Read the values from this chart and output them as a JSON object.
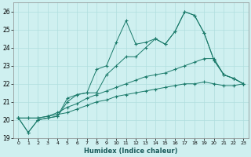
{
  "xlabel": "Humidex (Indice chaleur)",
  "background_color": "#cff0f0",
  "grid_color": "#b0dede",
  "line_color": "#1a7a6a",
  "xlim": [
    -0.5,
    23.5
  ],
  "ylim": [
    19,
    26.5
  ],
  "yticks": [
    19,
    20,
    21,
    22,
    23,
    24,
    25,
    26
  ],
  "xtick_labels": [
    "0",
    "1",
    "2",
    "3",
    "4",
    "5",
    "6",
    "7",
    "8",
    "9",
    "10",
    "11",
    "12",
    "13",
    "14",
    "15",
    "16",
    "17",
    "18",
    "19",
    "20",
    "21",
    "22",
    "23"
  ],
  "series": [
    [
      20.1,
      19.3,
      20.0,
      20.1,
      20.2,
      21.2,
      21.4,
      21.5,
      22.8,
      23.0,
      24.3,
      25.5,
      24.2,
      24.3,
      24.5,
      24.2,
      24.9,
      26.0,
      25.8,
      24.8,
      23.3,
      22.5,
      22.3,
      22.0
    ],
    [
      20.1,
      19.3,
      20.0,
      20.1,
      20.2,
      21.0,
      21.4,
      21.5,
      21.5,
      22.5,
      23.0,
      23.5,
      23.5,
      24.0,
      24.5,
      24.2,
      24.9,
      26.0,
      25.8,
      24.8,
      23.3,
      22.5,
      22.3,
      22.0
    ],
    [
      20.1,
      20.1,
      20.1,
      20.2,
      20.4,
      20.7,
      20.9,
      21.2,
      21.4,
      21.6,
      21.8,
      22.0,
      22.2,
      22.4,
      22.5,
      22.6,
      22.8,
      23.0,
      23.2,
      23.4,
      23.4,
      22.5,
      22.3,
      22.0
    ],
    [
      20.1,
      20.1,
      20.1,
      20.2,
      20.3,
      20.4,
      20.6,
      20.8,
      21.0,
      21.1,
      21.3,
      21.4,
      21.5,
      21.6,
      21.7,
      21.8,
      21.9,
      22.0,
      22.0,
      22.1,
      22.0,
      21.9,
      21.9,
      22.0
    ]
  ]
}
